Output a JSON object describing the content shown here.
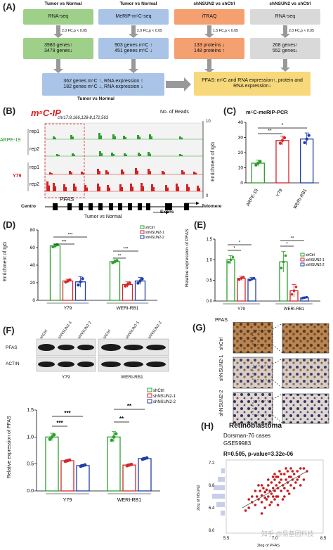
{
  "panelA": {
    "letter": "(A)",
    "headers": [
      "Tumor vs Normal",
      "Tumor vs Normal",
      "shNSUN2 vs shCtrl",
      "shNSUN2 vs shCtrl"
    ],
    "methods": [
      "RNA-seq",
      "MeRIP-m⁵C-seq",
      "iTRAQ",
      "RNA-seq"
    ],
    "thresholds": [
      "2.0 FC,p < 0.05",
      "2.0 FC,p < 0.05",
      "1.5 FC,p < 0.05",
      "2.0 FC,p < 0.05"
    ],
    "results": [
      [
        "3980 genes↑",
        "3479 genes↓"
      ],
      [
        "903 genes m⁵C ↑",
        "451 genes m⁵C ↓"
      ],
      [
        "133 proteins ↓",
        "148 proteins ↑"
      ],
      [
        "268 genes↑",
        "552 genes↓"
      ]
    ],
    "combined": [
      "362 genes m⁵C ↑,  RNA expression ↑",
      "182 genes m⁵C ↓,  RNA expression ↓"
    ],
    "combined_label": "Tumor vs Normal",
    "final": "PFAS:  m⁵C and RNA expression↑,  protein and RNA expression↓",
    "colors": {
      "green": "#9fd08a",
      "blue": "#a9c4e6",
      "orange": "#f5a070",
      "gray": "#d9d9d9",
      "yellow": "#f7d87a"
    }
  },
  "panelB": {
    "letter": "(B)",
    "title": "m⁵C-IP",
    "locus": "chr17:8,166,128-8,172,563",
    "reads_label": "No. of Reads",
    "y_top": "10",
    "y_bottom": "0",
    "groups": [
      "ARPE-19",
      "Y79"
    ],
    "tracks": [
      "rep1",
      "rep2",
      "rep1",
      "rep2"
    ],
    "gene": "PFAS",
    "centro": "Centro",
    "exons": "Exons",
    "telomere": "Telomere",
    "footer": "Tumor vs Normal"
  },
  "panelC": {
    "letter": "(C)",
    "title": "m⁵C-meRIP-PCR",
    "ylabel": "Enrichment of IgG",
    "sig": [
      "**",
      "*"
    ],
    "chart_data": {
      "type": "bar",
      "categories": [
        "ARPE-19",
        "Y79",
        "WERI-RB1"
      ],
      "values": [
        13,
        28,
        29
      ],
      "errors": [
        2,
        3,
        4
      ],
      "ylim": [
        0,
        40
      ],
      "yticks": [
        "0",
        "10",
        "20",
        "30",
        "40"
      ],
      "colors": [
        "#2ca02c",
        "#d62728",
        "#1f3ea8"
      ]
    }
  },
  "panelD": {
    "letter": "(D)",
    "ylabel": "Enrichment of IgG",
    "sig": [
      "***",
      "***",
      "**",
      "***"
    ],
    "chart_data": {
      "type": "bar",
      "categories": [
        "Y79",
        "WERI-RB1"
      ],
      "series": [
        {
          "name": "shCtrl",
          "values": [
            62,
            44
          ],
          "errors": [
            2,
            2
          ],
          "color": "#2ca02c"
        },
        {
          "name": "shNSUN2-1",
          "values": [
            22,
            18
          ],
          "errors": [
            2,
            3
          ],
          "color": "#d62728"
        },
        {
          "name": "shNSUN2-2",
          "values": [
            21,
            22
          ],
          "errors": [
            6,
            4
          ],
          "color": "#1f3ea8"
        }
      ],
      "ylim": [
        0,
        80
      ],
      "yticks": [
        "0",
        "20",
        "40",
        "60",
        "80"
      ]
    }
  },
  "panelE": {
    "letter": "(E)",
    "ylabel": "Relative expression of PFAS",
    "sig": [
      "*",
      "*",
      "*",
      "**"
    ],
    "chart_data": {
      "type": "bar",
      "categories": [
        "Y79",
        "WERI-RB1"
      ],
      "series": [
        {
          "name": "shCtrl",
          "values": [
            1.0,
            0.95
          ],
          "errors": [
            0.1,
            0.25
          ],
          "color": "#2ca02c"
        },
        {
          "name": "shNSUN2-1",
          "values": [
            0.55,
            0.25
          ],
          "errors": [
            0.05,
            0.15
          ],
          "color": "#d62728"
        },
        {
          "name": "shNSUN2-2",
          "values": [
            0.53,
            0.08
          ],
          "errors": [
            0.04,
            0.02
          ],
          "color": "#1f3ea8"
        }
      ],
      "ylim": [
        0,
        1.5
      ],
      "yticks": [
        "0.0",
        "0.5",
        "1.0",
        "1.5"
      ],
      "legend": [
        "shCtrl",
        "shNSUN2-1",
        "shNSUN2-2"
      ]
    }
  },
  "panelF": {
    "letter": "(F)",
    "lanes": [
      "shCtrl",
      "shNSUN2-1",
      "shNSUN2-2",
      "shCtrl",
      "shNSUN2-1",
      "shNSUN2-2"
    ],
    "rows": [
      "PFAS",
      "ACTIN"
    ],
    "cells": [
      "Y79",
      "WERI-RB1"
    ],
    "ylabel": "Relative expression of PFAS",
    "sig": [
      "***",
      "***",
      "**",
      "**"
    ],
    "chart_data": {
      "type": "bar",
      "categories": [
        "Y79",
        "WERI-RB1"
      ],
      "series": [
        {
          "name": "shCtrl",
          "values": [
            1.0,
            1.0
          ],
          "errors": [
            0.07,
            0.1
          ],
          "color": "#2ca02c"
        },
        {
          "name": "shNSUN2-1",
          "values": [
            0.56,
            0.48
          ],
          "errors": [
            0.02,
            0.02
          ],
          "color": "#d62728"
        },
        {
          "name": "shNSUN2-2",
          "values": [
            0.47,
            0.6
          ],
          "errors": [
            0.02,
            0.02
          ],
          "color": "#1f3ea8"
        }
      ],
      "ylim": [
        0,
        1.5
      ],
      "yticks": [
        "0.0",
        "0.5",
        "1.0",
        "1.5"
      ]
    }
  },
  "panelG": {
    "letter": "(G)",
    "title": "PFAS",
    "rows": [
      "shCtrl",
      "shNSUN2-1",
      "shNSUN2-2"
    ]
  },
  "panelH": {
    "letter": "(H)",
    "title": "Retinoblastoma",
    "dataset": [
      "Dorsman-76 cases",
      "GSE59983"
    ],
    "stat": "R=0.505, p-value=3.32e-06",
    "xlabel": "2log of PFAS",
    "ylabel": "2log of NSUN2",
    "xticks": [
      "5.5",
      "7.0",
      "8.5"
    ],
    "yticks": [
      "6.0",
      "6.4",
      "6.8",
      "7.2"
    ],
    "watermark": "知乎 @易基因科技",
    "chart_data": {
      "type": "scatter",
      "xlim": [
        5.5,
        8.5
      ],
      "ylim": [
        5.95,
        7.25
      ],
      "points": [
        [
          6.1,
          6.35
        ],
        [
          6.2,
          6.4
        ],
        [
          6.3,
          6.5
        ],
        [
          6.4,
          6.45
        ],
        [
          6.45,
          6.6
        ],
        [
          6.5,
          6.55
        ],
        [
          6.55,
          6.7
        ],
        [
          6.6,
          6.5
        ],
        [
          6.6,
          6.62
        ],
        [
          6.65,
          6.75
        ],
        [
          6.7,
          6.58
        ],
        [
          6.7,
          6.68
        ],
        [
          6.75,
          6.72
        ],
        [
          6.8,
          6.6
        ],
        [
          6.8,
          6.8
        ],
        [
          6.85,
          6.7
        ],
        [
          6.9,
          6.65
        ],
        [
          6.9,
          6.85
        ],
        [
          6.95,
          6.75
        ],
        [
          7.0,
          6.7
        ],
        [
          7.0,
          6.9
        ],
        [
          7.05,
          6.6
        ],
        [
          7.05,
          6.8
        ],
        [
          7.1,
          6.75
        ],
        [
          7.1,
          6.95
        ],
        [
          7.15,
          6.85
        ],
        [
          7.2,
          6.7
        ],
        [
          7.2,
          6.9
        ],
        [
          7.25,
          6.8
        ],
        [
          7.3,
          7.0
        ],
        [
          7.3,
          6.75
        ],
        [
          7.35,
          6.9
        ],
        [
          7.4,
          6.85
        ],
        [
          7.4,
          7.05
        ],
        [
          7.45,
          6.95
        ],
        [
          7.5,
          6.8
        ],
        [
          7.5,
          7.1
        ],
        [
          7.55,
          6.9
        ],
        [
          7.6,
          7.0
        ],
        [
          7.65,
          6.85
        ],
        [
          7.7,
          7.05
        ],
        [
          7.75,
          6.95
        ],
        [
          7.8,
          7.1
        ],
        [
          7.9,
          6.9
        ],
        [
          8.0,
          7.05
        ],
        [
          6.9,
          6.5
        ],
        [
          7.0,
          6.55
        ],
        [
          7.1,
          6.6
        ],
        [
          6.8,
          6.9
        ],
        [
          7.2,
          7.0
        ],
        [
          6.6,
          6.8
        ],
        [
          7.3,
          6.6
        ],
        [
          7.4,
          6.7
        ],
        [
          6.95,
          6.95
        ],
        [
          7.15,
          7.05
        ],
        [
          6.75,
          6.55
        ],
        [
          7.6,
          6.75
        ],
        [
          6.5,
          6.8
        ],
        [
          7.8,
          6.8
        ],
        [
          6.4,
          6.7
        ],
        [
          7.25,
          6.55
        ],
        [
          6.85,
          6.45
        ],
        [
          7.0,
          7.0
        ],
        [
          7.45,
          6.65
        ],
        [
          6.7,
          6.4
        ],
        [
          7.55,
          7.05
        ],
        [
          6.3,
          6.6
        ],
        [
          7.1,
          6.45
        ],
        [
          7.35,
          7.1
        ],
        [
          6.6,
          6.3
        ],
        [
          7.7,
          6.9
        ],
        [
          6.2,
          6.55
        ],
        [
          7.9,
          7.1
        ],
        [
          6.95,
          6.6
        ],
        [
          7.05,
          6.95
        ],
        [
          7.5,
          6.95
        ]
      ],
      "fit": [
        [
          6.0,
          6.4
        ],
        [
          8.0,
          7.05
        ]
      ]
    }
  }
}
